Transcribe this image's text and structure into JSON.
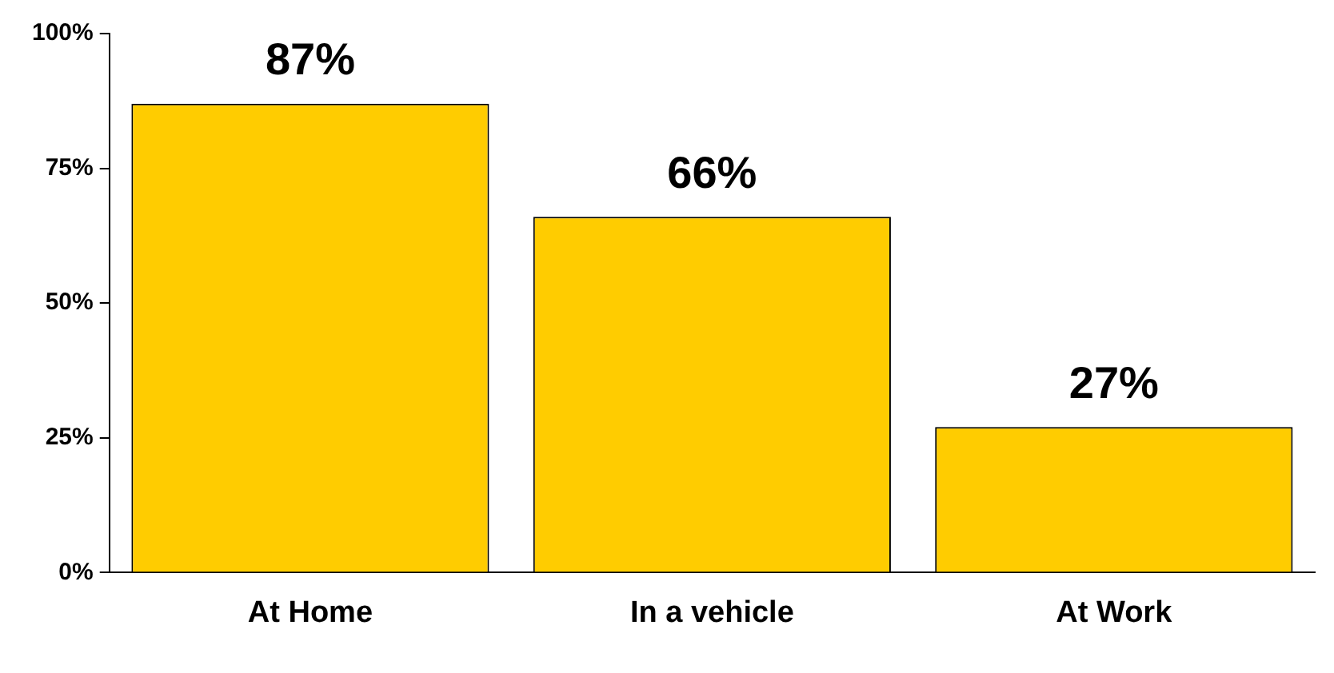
{
  "chart_data": {
    "type": "bar",
    "categories": [
      "At Home",
      "In a vehicle",
      "At Work"
    ],
    "values": [
      87,
      66,
      27
    ],
    "value_labels": [
      "87%",
      "66%",
      "27%"
    ],
    "color": "#ffcc00",
    "ylim": [
      0,
      100
    ],
    "yticks": [
      {
        "value": 0,
        "label": "0%"
      },
      {
        "value": 25,
        "label": "25%"
      },
      {
        "value": 50,
        "label": "50%"
      },
      {
        "value": 75,
        "label": "75%"
      },
      {
        "value": 100,
        "label": "100%"
      }
    ],
    "grid": false,
    "legend": false
  }
}
